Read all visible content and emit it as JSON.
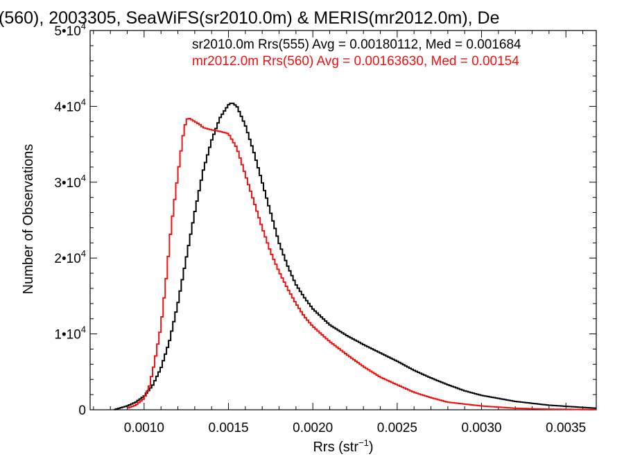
{
  "chart_data": {
    "type": "line",
    "title": "(560), 2003305, SeaWiFS(sr2010.0m) & MERIS(mr2012.0m), De",
    "xlabel": "Rrs (str",
    "xlabel_sup": "−1",
    "xlabel_suffix": ")",
    "ylabel": "Number of Observations",
    "xlim": [
      0.00068,
      0.00368
    ],
    "ylim": [
      0,
      50000
    ],
    "grid": false,
    "legend_position": "top-right",
    "x_ticks": [
      {
        "value": 0.001,
        "label": "0.0010"
      },
      {
        "value": 0.0015,
        "label": "0.0015"
      },
      {
        "value": 0.002,
        "label": "0.0020"
      },
      {
        "value": 0.0025,
        "label": "0.0025"
      },
      {
        "value": 0.003,
        "label": "0.0030"
      },
      {
        "value": 0.0035,
        "label": "0.0035"
      }
    ],
    "y_ticks": [
      {
        "value": 0,
        "base": "0",
        "exp": ""
      },
      {
        "value": 10000,
        "base": "1•10",
        "exp": "4"
      },
      {
        "value": 20000,
        "base": "2•10",
        "exp": "4"
      },
      {
        "value": 30000,
        "base": "3•10",
        "exp": "4"
      },
      {
        "value": 40000,
        "base": "4•10",
        "exp": "4"
      },
      {
        "value": 50000,
        "base": "5•10",
        "exp": "4"
      }
    ],
    "series": [
      {
        "name": "sr2010.0m Rrs(555) Avg = 0.00180112, Med = 0.001684",
        "color": "#000000",
        "x": [
          0.00082,
          0.0009,
          0.00095,
          0.001,
          0.00105,
          0.0011,
          0.00115,
          0.0012,
          0.00125,
          0.0013,
          0.00135,
          0.0014,
          0.00145,
          0.0015,
          0.00152,
          0.00155,
          0.0016,
          0.00165,
          0.0017,
          0.00175,
          0.0018,
          0.00185,
          0.0019,
          0.00195,
          0.002,
          0.0021,
          0.0022,
          0.0023,
          0.0024,
          0.0025,
          0.0026,
          0.0027,
          0.0028,
          0.0029,
          0.003,
          0.0032,
          0.0034,
          0.00368
        ],
        "y": [
          0,
          500,
          1000,
          1800,
          3200,
          5500,
          9000,
          14000,
          20000,
          26000,
          31500,
          35500,
          38500,
          40200,
          40500,
          40000,
          37500,
          34000,
          30000,
          26000,
          22000,
          19000,
          16500,
          14800,
          13300,
          11200,
          9800,
          8600,
          7500,
          6400,
          5200,
          4200,
          3300,
          2500,
          1900,
          1100,
          600,
          200
        ]
      },
      {
        "name": "mr2012.0m Rrs(560) Avg = 0.00163630, Med = 0.00154",
        "color": "#ee1111",
        "x": [
          0.0009,
          0.00095,
          0.001,
          0.00103,
          0.00106,
          0.0011,
          0.00113,
          0.00116,
          0.0012,
          0.00123,
          0.00125,
          0.00127,
          0.0013,
          0.00133,
          0.00135,
          0.0014,
          0.00145,
          0.0015,
          0.00155,
          0.0016,
          0.00165,
          0.0017,
          0.00175,
          0.0018,
          0.00185,
          0.0019,
          0.00195,
          0.002,
          0.0021,
          0.0022,
          0.0023,
          0.0024,
          0.0025,
          0.0026,
          0.0027,
          0.0028,
          0.003,
          0.0032,
          0.0034,
          0.00368
        ],
        "y": [
          200,
          600,
          1500,
          3000,
          6000,
          11000,
          17000,
          24000,
          31000,
          36000,
          38300,
          38400,
          38000,
          37600,
          37200,
          36900,
          36700,
          36400,
          34500,
          31000,
          27500,
          24000,
          20800,
          18200,
          16000,
          14000,
          12300,
          11000,
          9000,
          7300,
          5700,
          4300,
          3300,
          2300,
          1600,
          1000,
          500,
          200,
          80,
          20
        ]
      }
    ]
  }
}
